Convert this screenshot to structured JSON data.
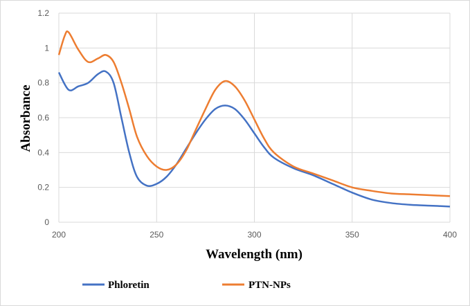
{
  "chart_data": {
    "type": "line",
    "xlabel": "Wavelength (nm)",
    "ylabel": "Absorbance",
    "xlim": [
      200,
      400
    ],
    "ylim": [
      0,
      1.2
    ],
    "xticks": [
      "200",
      "250",
      "300",
      "350",
      "400"
    ],
    "yticks": [
      "0",
      "0.2",
      "0.4",
      "0.6",
      "0.8",
      "1",
      "1.2"
    ],
    "grid": true,
    "legend_position": "bottom",
    "series": [
      {
        "name": "Phloretin",
        "color": "#4472C4",
        "x": [
          200,
          205,
          210,
          215,
          220,
          224,
          228,
          232,
          236,
          240,
          245,
          250,
          255,
          260,
          265,
          270,
          275,
          280,
          285,
          290,
          295,
          300,
          305,
          310,
          320,
          330,
          340,
          350,
          360,
          370,
          380,
          390,
          400
        ],
        "y": [
          0.86,
          0.76,
          0.78,
          0.8,
          0.85,
          0.865,
          0.8,
          0.6,
          0.4,
          0.26,
          0.21,
          0.22,
          0.26,
          0.33,
          0.42,
          0.51,
          0.59,
          0.65,
          0.67,
          0.65,
          0.59,
          0.51,
          0.43,
          0.37,
          0.31,
          0.27,
          0.22,
          0.17,
          0.13,
          0.11,
          0.1,
          0.095,
          0.09
        ]
      },
      {
        "name": "PTN-NPs",
        "color": "#ED7D31",
        "x": [
          200,
          203,
          205,
          210,
          215,
          220,
          224,
          228,
          232,
          236,
          240,
          245,
          250,
          255,
          260,
          265,
          270,
          275,
          280,
          285,
          290,
          295,
          300,
          305,
          310,
          320,
          330,
          340,
          350,
          360,
          370,
          380,
          390,
          400
        ],
        "y": [
          0.96,
          1.07,
          1.09,
          0.99,
          0.92,
          0.94,
          0.96,
          0.92,
          0.8,
          0.65,
          0.49,
          0.38,
          0.32,
          0.3,
          0.33,
          0.41,
          0.53,
          0.65,
          0.76,
          0.81,
          0.78,
          0.7,
          0.59,
          0.48,
          0.4,
          0.32,
          0.28,
          0.24,
          0.2,
          0.18,
          0.165,
          0.16,
          0.155,
          0.15
        ]
      }
    ]
  }
}
